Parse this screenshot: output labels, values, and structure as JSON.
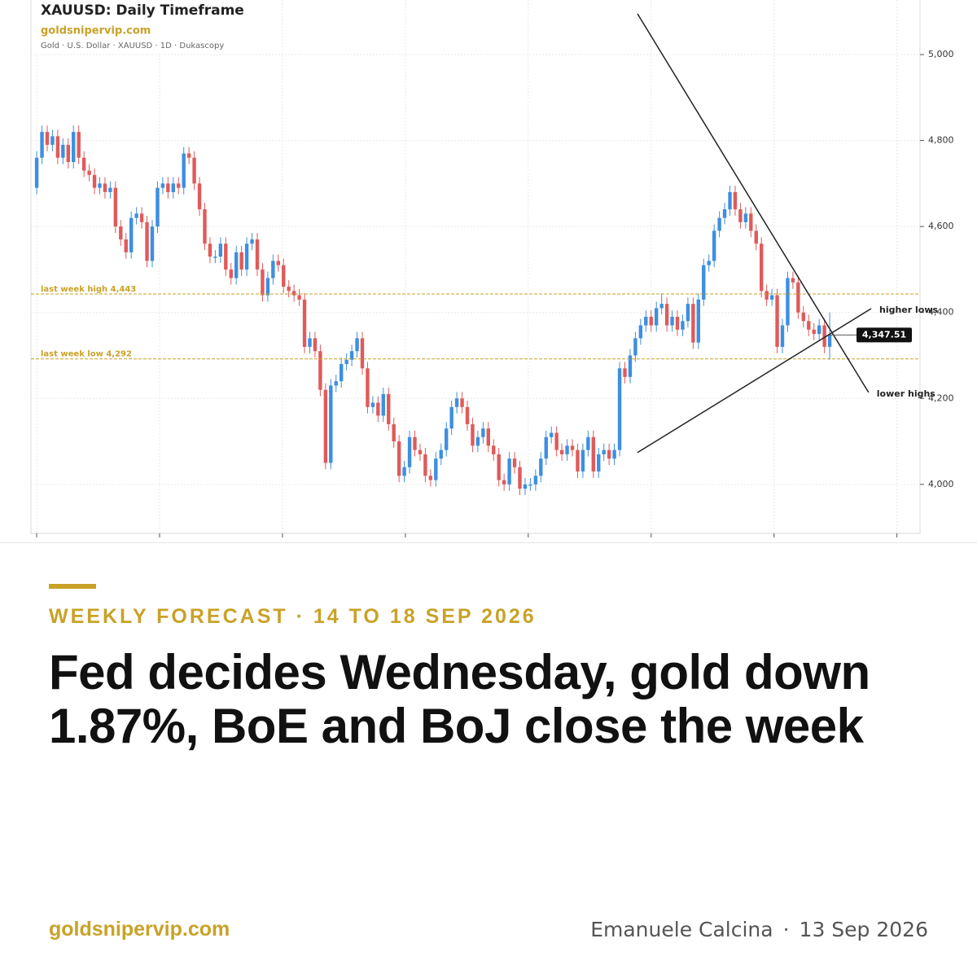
{
  "chart_data": {
    "type": "candlestick",
    "title": "XAUUSD: Daily Timeframe",
    "source": "goldsnipervip.com",
    "subtitle": "Gold · U.S. Dollar · XAUUSD · 1D · Dukascopy",
    "up_color": "#3d8fe0",
    "down_color": "#e05a5a",
    "xlim": [
      -1.1,
      168.2
    ],
    "xticks": [
      0,
      23.4,
      46.8,
      70.2,
      93.6,
      117,
      140.4,
      163.8
    ],
    "ylim": [
      3886,
      5127
    ],
    "yticks": [
      {
        "value": 4000,
        "label": "4,000"
      },
      {
        "value": 4200,
        "label": "4,200"
      },
      {
        "value": 4400,
        "label": "4,400"
      },
      {
        "value": 4600,
        "label": "4,600"
      },
      {
        "value": 4800,
        "label": "4,800"
      },
      {
        "value": 5000,
        "label": "5,000"
      }
    ],
    "grid": true,
    "levels": [
      {
        "value": 4443,
        "label": "last week high 4,443",
        "color": "#c9a227"
      },
      {
        "value": 4292,
        "label": "last week low 4,292",
        "color": "#c9a227"
      }
    ],
    "trendlines": [
      {
        "label": "higher lows",
        "x": [
          114.4,
          158.9
        ],
        "y": [
          4074,
          4409
        ]
      },
      {
        "label": "lower highs",
        "x": [
          114.4,
          158.4
        ],
        "y": [
          5095,
          4214
        ]
      }
    ],
    "last_price": {
      "value": 4347.51,
      "label": "4,347.51"
    },
    "candles": [
      [
        4690,
        4775,
        4675,
        4760
      ],
      [
        4760,
        4835,
        4745,
        4820
      ],
      [
        4820,
        4835,
        4775,
        4790
      ],
      [
        4790,
        4825,
        4775,
        4810
      ],
      [
        4810,
        4825,
        4745,
        4760
      ],
      [
        4760,
        4805,
        4745,
        4790
      ],
      [
        4790,
        4805,
        4735,
        4750
      ],
      [
        4750,
        4835,
        4735,
        4820
      ],
      [
        4820,
        4835,
        4745,
        4760
      ],
      [
        4760,
        4775,
        4715,
        4730
      ],
      [
        4730,
        4745,
        4705,
        4720
      ],
      [
        4720,
        4735,
        4675,
        4690
      ],
      [
        4690,
        4715,
        4675,
        4700
      ],
      [
        4700,
        4715,
        4665,
        4680
      ],
      [
        4680,
        4705,
        4665,
        4690
      ],
      [
        4690,
        4705,
        4585,
        4600
      ],
      [
        4600,
        4615,
        4555,
        4570
      ],
      [
        4570,
        4585,
        4525,
        4540
      ],
      [
        4540,
        4635,
        4525,
        4620
      ],
      [
        4620,
        4645,
        4605,
        4630
      ],
      [
        4630,
        4645,
        4595,
        4610
      ],
      [
        4610,
        4625,
        4505,
        4520
      ],
      [
        4520,
        4615,
        4505,
        4600
      ],
      [
        4600,
        4705,
        4585,
        4690
      ],
      [
        4690,
        4715,
        4675,
        4700
      ],
      [
        4700,
        4715,
        4665,
        4680
      ],
      [
        4680,
        4715,
        4665,
        4700
      ],
      [
        4700,
        4715,
        4675,
        4690
      ],
      [
        4690,
        4785,
        4675,
        4770
      ],
      [
        4770,
        4785,
        4745,
        4760
      ],
      [
        4760,
        4775,
        4685,
        4700
      ],
      [
        4700,
        4715,
        4625,
        4640
      ],
      [
        4640,
        4655,
        4545,
        4560
      ],
      [
        4560,
        4575,
        4515,
        4530
      ],
      [
        4530,
        4545,
        4515,
        4530
      ],
      [
        4530,
        4575,
        4515,
        4560
      ],
      [
        4560,
        4575,
        4485,
        4500
      ],
      [
        4500,
        4515,
        4465,
        4480
      ],
      [
        4480,
        4555,
        4465,
        4540
      ],
      [
        4540,
        4555,
        4485,
        4500
      ],
      [
        4500,
        4575,
        4485,
        4560
      ],
      [
        4560,
        4585,
        4545,
        4570
      ],
      [
        4570,
        4585,
        4485,
        4500
      ],
      [
        4500,
        4515,
        4425,
        4440
      ],
      [
        4440,
        4495,
        4425,
        4480
      ],
      [
        4480,
        4535,
        4465,
        4520
      ],
      [
        4520,
        4535,
        4495,
        4510
      ],
      [
        4510,
        4525,
        4445,
        4460
      ],
      [
        4460,
        4475,
        4435,
        4450
      ],
      [
        4450,
        4465,
        4425,
        4440
      ],
      [
        4440,
        4455,
        4415,
        4430
      ],
      [
        4430,
        4445,
        4305,
        4320
      ],
      [
        4320,
        4355,
        4305,
        4340
      ],
      [
        4340,
        4355,
        4295,
        4310
      ],
      [
        4310,
        4325,
        4205,
        4220
      ],
      [
        4220,
        4235,
        4035,
        4050
      ],
      [
        4050,
        4245,
        4035,
        4230
      ],
      [
        4230,
        4255,
        4215,
        4240
      ],
      [
        4240,
        4295,
        4225,
        4280
      ],
      [
        4280,
        4305,
        4265,
        4290
      ],
      [
        4290,
        4325,
        4275,
        4310
      ],
      [
        4310,
        4355,
        4295,
        4340
      ],
      [
        4340,
        4355,
        4255,
        4270
      ],
      [
        4270,
        4285,
        4165,
        4180
      ],
      [
        4180,
        4205,
        4165,
        4190
      ],
      [
        4190,
        4205,
        4145,
        4160
      ],
      [
        4160,
        4225,
        4145,
        4210
      ],
      [
        4210,
        4225,
        4125,
        4140
      ],
      [
        4140,
        4155,
        4085,
        4100
      ],
      [
        4100,
        4115,
        4005,
        4020
      ],
      [
        4020,
        4055,
        4005,
        4040
      ],
      [
        4040,
        4125,
        4025,
        4110
      ],
      [
        4110,
        4125,
        4065,
        4080
      ],
      [
        4080,
        4095,
        4055,
        4070
      ],
      [
        4070,
        4085,
        4005,
        4020
      ],
      [
        4020,
        4035,
        3995,
        4010
      ],
      [
        4010,
        4075,
        3995,
        4060
      ],
      [
        4060,
        4095,
        4045,
        4080
      ],
      [
        4080,
        4145,
        4065,
        4130
      ],
      [
        4130,
        4195,
        4115,
        4180
      ],
      [
        4180,
        4215,
        4165,
        4200
      ],
      [
        4200,
        4215,
        4165,
        4180
      ],
      [
        4180,
        4195,
        4125,
        4140
      ],
      [
        4140,
        4155,
        4075,
        4090
      ],
      [
        4090,
        4125,
        4075,
        4110
      ],
      [
        4110,
        4145,
        4095,
        4130
      ],
      [
        4130,
        4145,
        4075,
        4090
      ],
      [
        4090,
        4105,
        4055,
        4070
      ],
      [
        4070,
        4085,
        3995,
        4010
      ],
      [
        4010,
        4025,
        3985,
        4000
      ],
      [
        4000,
        4075,
        3985,
        4060
      ],
      [
        4060,
        4075,
        4025,
        4040
      ],
      [
        4040,
        4055,
        3975,
        3990
      ],
      [
        3990,
        4015,
        3975,
        4000
      ],
      [
        4000,
        4015,
        3985,
        4000
      ],
      [
        4000,
        4035,
        3985,
        4020
      ],
      [
        4020,
        4075,
        4005,
        4060
      ],
      [
        4060,
        4125,
        4045,
        4110
      ],
      [
        4110,
        4135,
        4095,
        4120
      ],
      [
        4120,
        4135,
        4065,
        4080
      ],
      [
        4080,
        4095,
        4055,
        4070
      ],
      [
        4070,
        4105,
        4055,
        4090
      ],
      [
        4090,
        4105,
        4065,
        4080
      ],
      [
        4080,
        4095,
        4015,
        4030
      ],
      [
        4030,
        4095,
        4015,
        4080
      ],
      [
        4080,
        4125,
        4065,
        4110
      ],
      [
        4110,
        4125,
        4015,
        4030
      ],
      [
        4030,
        4085,
        4015,
        4070
      ],
      [
        4070,
        4095,
        4055,
        4080
      ],
      [
        4080,
        4095,
        4045,
        4060
      ],
      [
        4060,
        4095,
        4045,
        4080
      ],
      [
        4080,
        4285,
        4065,
        4270
      ],
      [
        4270,
        4285,
        4235,
        4250
      ],
      [
        4250,
        4315,
        4235,
        4300
      ],
      [
        4300,
        4355,
        4285,
        4340
      ],
      [
        4340,
        4385,
        4325,
        4370
      ],
      [
        4370,
        4405,
        4355,
        4390
      ],
      [
        4390,
        4405,
        4355,
        4370
      ],
      [
        4370,
        4425,
        4355,
        4410
      ],
      [
        4410,
        4445,
        4395,
        4420
      ],
      [
        4420,
        4435,
        4355,
        4370
      ],
      [
        4370,
        4405,
        4355,
        4390
      ],
      [
        4390,
        4405,
        4345,
        4360
      ],
      [
        4360,
        4395,
        4345,
        4380
      ],
      [
        4380,
        4435,
        4365,
        4420
      ],
      [
        4420,
        4435,
        4315,
        4330
      ],
      [
        4330,
        4445,
        4315,
        4430
      ],
      [
        4430,
        4525,
        4415,
        4510
      ],
      [
        4510,
        4535,
        4495,
        4520
      ],
      [
        4520,
        4605,
        4505,
        4590
      ],
      [
        4590,
        4635,
        4575,
        4620
      ],
      [
        4620,
        4655,
        4605,
        4640
      ],
      [
        4640,
        4695,
        4625,
        4680
      ],
      [
        4680,
        4695,
        4625,
        4640
      ],
      [
        4640,
        4655,
        4595,
        4610
      ],
      [
        4610,
        4645,
        4595,
        4630
      ],
      [
        4630,
        4645,
        4575,
        4590
      ],
      [
        4590,
        4605,
        4545,
        4560
      ],
      [
        4560,
        4575,
        4435,
        4450
      ],
      [
        4450,
        4465,
        4415,
        4430
      ],
      [
        4430,
        4455,
        4415,
        4440
      ],
      [
        4440,
        4455,
        4305,
        4320
      ],
      [
        4320,
        4385,
        4305,
        4370
      ],
      [
        4370,
        4495,
        4355,
        4480
      ],
      [
        4480,
        4495,
        4455,
        4470
      ],
      [
        4470,
        4485,
        4385,
        4400
      ],
      [
        4400,
        4415,
        4365,
        4380
      ],
      [
        4380,
        4395,
        4345,
        4360
      ],
      [
        4360,
        4375,
        4335,
        4350
      ],
      [
        4350,
        4385,
        4335,
        4370
      ],
      [
        4370,
        4385,
        4305,
        4320
      ],
      [
        4320,
        4400,
        4290,
        4347.51
      ]
    ]
  },
  "article": {
    "kicker": "WEEKLY FORECAST · 14 TO 18 SEP 2026",
    "headline": "Fed decides Wednesday, gold down 1.87%, BoE and BoJ close the week",
    "site": "goldsnipervip.com",
    "author": "Emanuele Calcina",
    "date": "13 Sep 2026"
  }
}
